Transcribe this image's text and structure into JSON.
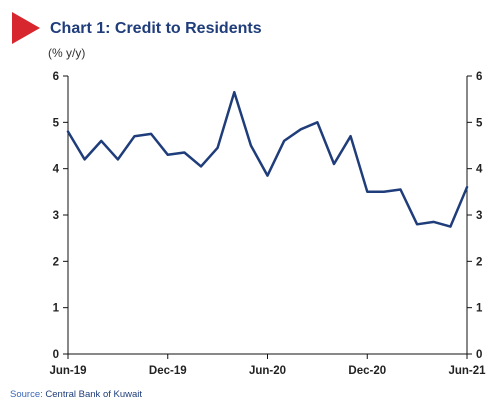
{
  "header": {
    "title": "Chart 1: Credit to Residents",
    "unit": "(% y/y)",
    "marker_color": "#d8262e",
    "title_color": "#1f3d7a"
  },
  "footer": {
    "source_label": "Source:",
    "source_text": "Central Bank of Kuwait"
  },
  "chart_data": {
    "type": "line",
    "title": "Chart 1: Credit to Residents",
    "ylabel": "(% y/y)",
    "xlabel": "",
    "ylim": [
      0,
      6
    ],
    "yticks": [
      0,
      1,
      2,
      3,
      4,
      5,
      6
    ],
    "y_axes": "left-and-right",
    "grid": false,
    "legend": "none",
    "line_color": "#1f3d7a",
    "x_tick_labels": [
      "Jun-19",
      "Dec-19",
      "Jun-20",
      "Dec-20",
      "Jun-21"
    ],
    "x_tick_months": [
      "2019-06",
      "2019-12",
      "2020-06",
      "2020-12",
      "2021-06"
    ],
    "x": [
      "2019-06",
      "2019-07",
      "2019-08",
      "2019-09",
      "2019-10",
      "2019-11",
      "2019-12",
      "2020-01",
      "2020-02",
      "2020-03",
      "2020-04",
      "2020-05",
      "2020-06",
      "2020-07",
      "2020-08",
      "2020-09",
      "2020-10",
      "2020-11",
      "2020-12",
      "2021-01",
      "2021-02",
      "2021-03",
      "2021-04",
      "2021-05",
      "2021-06"
    ],
    "series": [
      {
        "values": [
          4.8,
          4.2,
          4.6,
          4.2,
          4.7,
          4.75,
          4.3,
          4.35,
          4.05,
          4.45,
          5.65,
          4.5,
          3.85,
          4.6,
          4.85,
          5.0,
          4.1,
          4.7,
          3.5,
          3.5,
          3.55,
          2.8,
          2.85,
          2.75,
          3.6
        ]
      }
    ]
  }
}
